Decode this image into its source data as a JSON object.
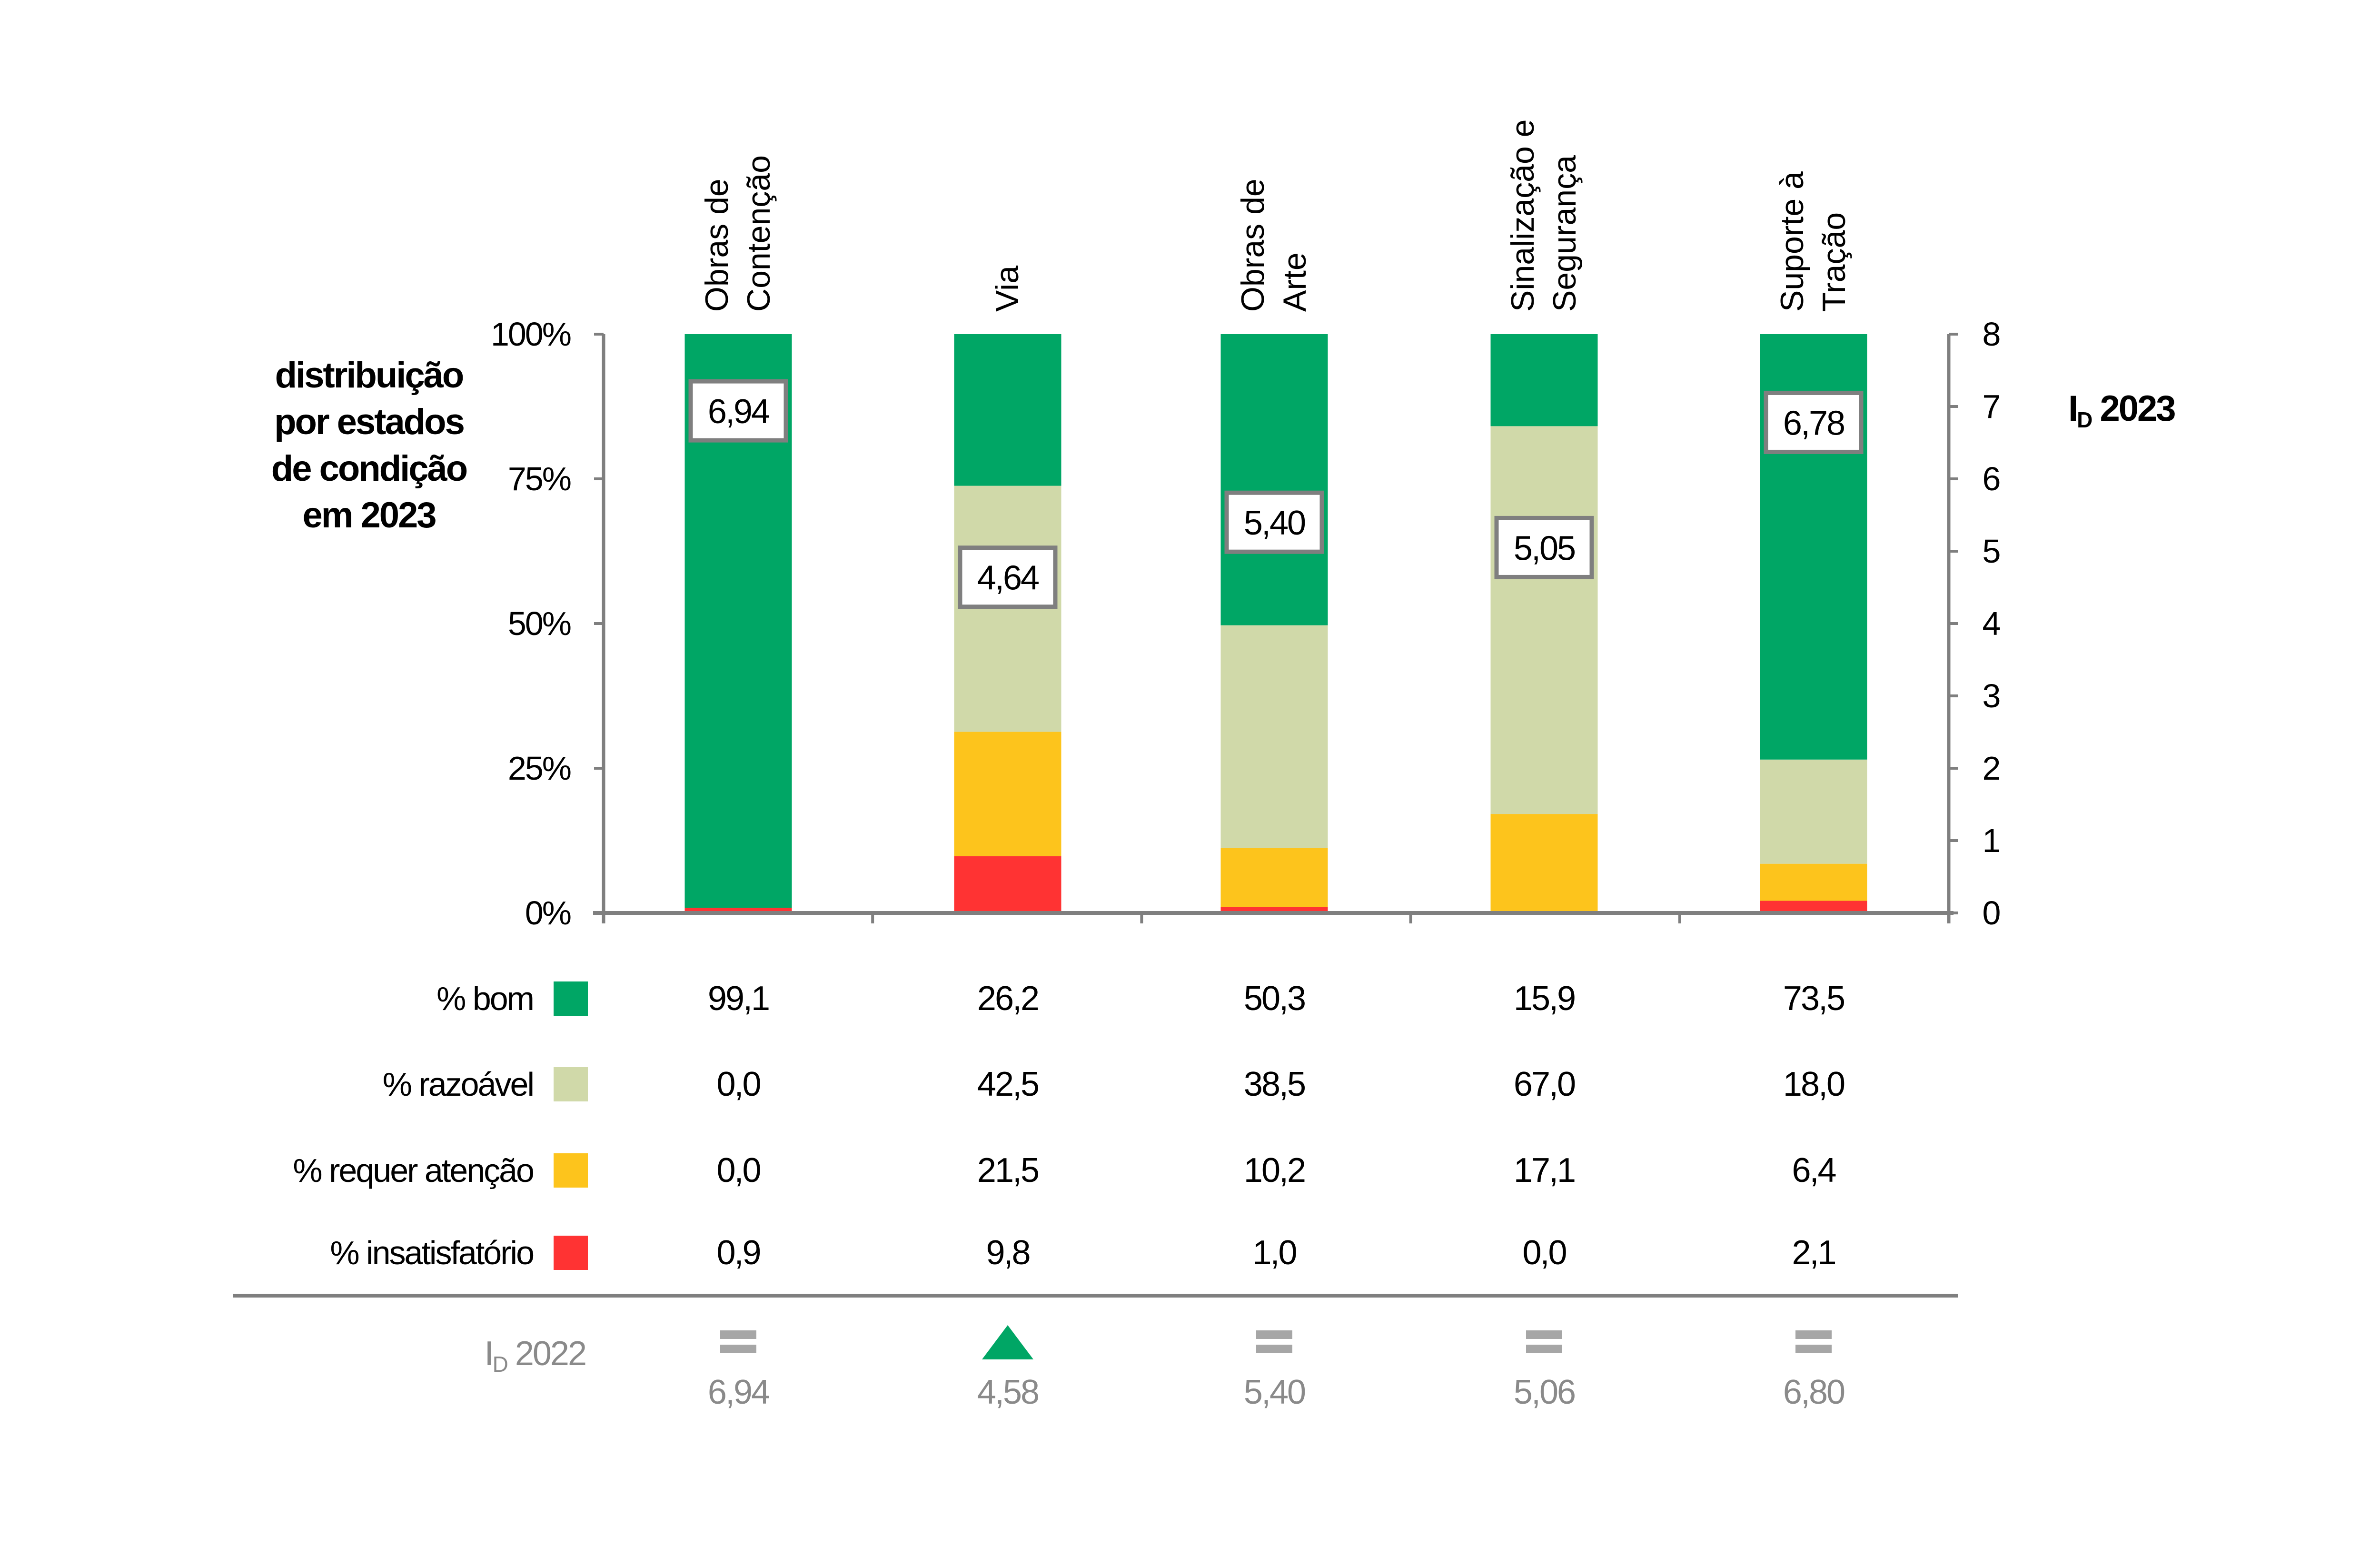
{
  "chart_data": {
    "type": "bar",
    "stacked": true,
    "categories": [
      "Obras de Contenção",
      "Via",
      "Obras de Arte",
      "Sinalização e Segurança",
      "Suporte à Tração"
    ],
    "category_label_lines": [
      [
        "Obras de",
        "Contenção"
      ],
      [
        "Via"
      ],
      [
        "Obras de",
        "Arte"
      ],
      [
        "Sinalização e",
        "Segurança"
      ],
      [
        "Suporte à",
        "Tração"
      ]
    ],
    "series": [
      {
        "name": "% bom",
        "color": "#00A665",
        "values": [
          99.1,
          26.2,
          50.3,
          15.9,
          73.5
        ],
        "labels": [
          "99,1",
          "26,2",
          "50,3",
          "15,9",
          "73,5"
        ]
      },
      {
        "name": "% razoável",
        "color": "#D0D9A9",
        "values": [
          0.0,
          42.5,
          38.5,
          67.0,
          18.0
        ],
        "labels": [
          "0,0",
          "42,5",
          "38,5",
          "67,0",
          "18,0"
        ]
      },
      {
        "name": "% requer atenção",
        "color": "#FDC41C",
        "values": [
          0.0,
          21.5,
          10.2,
          17.1,
          6.4
        ],
        "labels": [
          "0,0",
          "21,5",
          "10,2",
          "17,1",
          "6,4"
        ]
      },
      {
        "name": "% insatisfatório",
        "color": "#FF3333",
        "values": [
          0.9,
          9.8,
          1.0,
          0.0,
          2.1
        ],
        "labels": [
          "0,9",
          "9,8",
          "1,0",
          "0,0",
          "2,1"
        ]
      }
    ],
    "stack_order_bottom_to_top": [
      "% insatisfatório",
      "% requer atenção",
      "% razoável",
      "% bom"
    ],
    "id_2023": {
      "values": [
        6.94,
        4.64,
        5.4,
        5.05,
        6.78
      ],
      "labels": [
        "6,94",
        "4,64",
        "5,40",
        "5,05",
        "6,78"
      ]
    },
    "id_2022": {
      "values": [
        6.94,
        4.58,
        5.4,
        5.06,
        6.8
      ],
      "labels": [
        "6,94",
        "4,58",
        "5,40",
        "5,06",
        "6,80"
      ],
      "trend": [
        "equal",
        "up",
        "equal",
        "equal",
        "equal"
      ]
    },
    "left_axis": {
      "title": "distribuição por estados de condição em 2023",
      "title_lines": [
        "distribuição",
        "por estados",
        "de condição",
        "em 2023"
      ],
      "ylim": [
        0,
        100
      ],
      "ticks": [
        0,
        25,
        50,
        75,
        100
      ],
      "tick_labels": [
        "0%",
        "25%",
        "50%",
        "75%",
        "100%"
      ]
    },
    "right_axis": {
      "title_main": "I",
      "title_sub": "D",
      "title_rest": " 2023",
      "ylim": [
        0,
        8
      ],
      "ticks": [
        0,
        1,
        2,
        3,
        4,
        5,
        6,
        7,
        8
      ],
      "tick_labels": [
        "0",
        "1",
        "2",
        "3",
        "4",
        "5",
        "6",
        "7",
        "8"
      ]
    },
    "id_2022_label": {
      "main": "I",
      "sub": "D",
      "rest": " 2022"
    },
    "grid": false,
    "legend": "left-table"
  },
  "colors": {
    "axis": "#7f7f7f",
    "equal_icon": "#a6a6a6",
    "up_icon": "#00A665",
    "muted_text": "#8a8a8a",
    "box_border": "#7f7f7f"
  }
}
